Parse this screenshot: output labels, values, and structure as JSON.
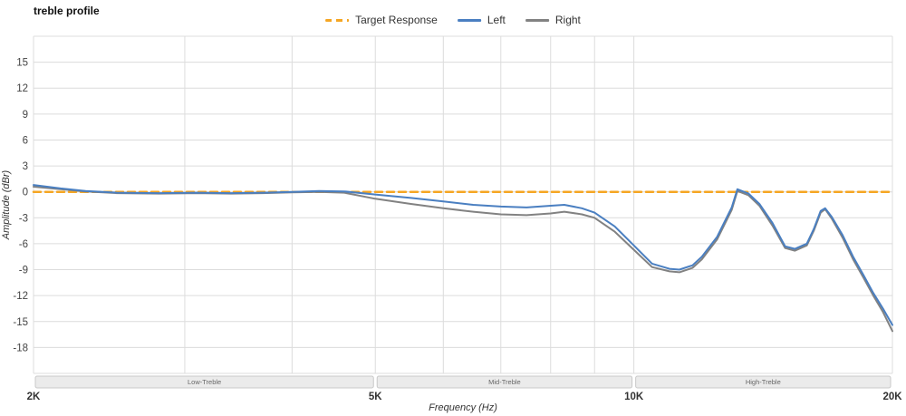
{
  "title": "treble profile",
  "axes": {
    "x_label": "Frequency (Hz)",
    "y_label": "Amplitude (dBr)",
    "x_ticks": [
      {
        "f": 2000,
        "label": "2K"
      },
      {
        "f": 5000,
        "label": "5K"
      },
      {
        "f": 10000,
        "label": "10K"
      },
      {
        "f": 20000,
        "label": "20K"
      }
    ],
    "x_gridlines": [
      2000,
      3000,
      4000,
      5000,
      6000,
      7000,
      8000,
      9000,
      10000,
      20000
    ],
    "y_ticks": [
      15,
      12,
      9,
      6,
      3,
      0,
      -3,
      -6,
      -9,
      -12,
      -15,
      -18
    ]
  },
  "bands": [
    {
      "label": "Low-Treble",
      "from": 2000,
      "to": 5000
    },
    {
      "label": "Mid-Treble",
      "from": 5000,
      "to": 10000
    },
    {
      "label": "High-Treble",
      "from": 10000,
      "to": 20000
    }
  ],
  "colors": {
    "grid": "#dcdcdc",
    "tick_text": "#444444",
    "axis_label_text": "#333333",
    "band_fill": "#ebebeb",
    "band_border": "#c9c9c9",
    "band_text": "#666666"
  },
  "chart_data": {
    "type": "line",
    "x_scale": "log",
    "x_range": [
      2000,
      20000
    ],
    "y_range": [
      -21,
      18
    ],
    "x_unit": "Hz",
    "y_unit": "dBr",
    "grid": true,
    "legend_position": "top-center",
    "series": [
      {
        "name": "Target Response",
        "color": "#f5a623",
        "style": "dashed",
        "points": [
          [
            2000,
            0
          ],
          [
            20000,
            0
          ]
        ]
      },
      {
        "name": "Left",
        "color": "#4a7fc1",
        "style": "solid",
        "points": [
          [
            2000,
            0.8
          ],
          [
            2150,
            0.4
          ],
          [
            2300,
            0.1
          ],
          [
            2500,
            -0.1
          ],
          [
            2800,
            -0.15
          ],
          [
            3100,
            -0.1
          ],
          [
            3400,
            -0.15
          ],
          [
            3700,
            -0.1
          ],
          [
            4000,
            0.0
          ],
          [
            4300,
            0.1
          ],
          [
            4600,
            0.05
          ],
          [
            5000,
            -0.3
          ],
          [
            5500,
            -0.7
          ],
          [
            6000,
            -1.1
          ],
          [
            6500,
            -1.5
          ],
          [
            7000,
            -1.7
          ],
          [
            7500,
            -1.8
          ],
          [
            8000,
            -1.6
          ],
          [
            8300,
            -1.5
          ],
          [
            8700,
            -1.9
          ],
          [
            9000,
            -2.4
          ],
          [
            9500,
            -4.0
          ],
          [
            10000,
            -6.2
          ],
          [
            10500,
            -8.3
          ],
          [
            11000,
            -8.9
          ],
          [
            11300,
            -9.0
          ],
          [
            11700,
            -8.5
          ],
          [
            12000,
            -7.5
          ],
          [
            12500,
            -5.2
          ],
          [
            13000,
            -1.8
          ],
          [
            13200,
            0.3
          ],
          [
            13600,
            -0.2
          ],
          [
            14000,
            -1.4
          ],
          [
            14500,
            -3.6
          ],
          [
            15000,
            -6.3
          ],
          [
            15400,
            -6.6
          ],
          [
            15900,
            -6.0
          ],
          [
            16200,
            -4.3
          ],
          [
            16500,
            -2.2
          ],
          [
            16700,
            -1.9
          ],
          [
            17000,
            -2.9
          ],
          [
            17500,
            -5.0
          ],
          [
            18000,
            -7.5
          ],
          [
            18500,
            -9.6
          ],
          [
            19000,
            -11.7
          ],
          [
            19500,
            -13.5
          ],
          [
            20000,
            -15.4
          ]
        ]
      },
      {
        "name": "Right",
        "color": "#828282",
        "style": "solid",
        "points": [
          [
            2000,
            0.6
          ],
          [
            2150,
            0.3
          ],
          [
            2300,
            0.05
          ],
          [
            2500,
            -0.15
          ],
          [
            2800,
            -0.2
          ],
          [
            3100,
            -0.15
          ],
          [
            3400,
            -0.2
          ],
          [
            3700,
            -0.15
          ],
          [
            4000,
            -0.05
          ],
          [
            4300,
            0.0
          ],
          [
            4600,
            -0.1
          ],
          [
            5000,
            -0.8
          ],
          [
            5500,
            -1.4
          ],
          [
            6000,
            -1.9
          ],
          [
            6500,
            -2.3
          ],
          [
            7000,
            -2.6
          ],
          [
            7500,
            -2.7
          ],
          [
            8000,
            -2.5
          ],
          [
            8300,
            -2.3
          ],
          [
            8700,
            -2.6
          ],
          [
            9000,
            -3.0
          ],
          [
            9500,
            -4.6
          ],
          [
            10000,
            -6.7
          ],
          [
            10500,
            -8.7
          ],
          [
            11000,
            -9.2
          ],
          [
            11300,
            -9.3
          ],
          [
            11700,
            -8.8
          ],
          [
            12000,
            -7.8
          ],
          [
            12500,
            -5.5
          ],
          [
            13000,
            -2.1
          ],
          [
            13200,
            0.1
          ],
          [
            13600,
            -0.4
          ],
          [
            14000,
            -1.6
          ],
          [
            14500,
            -3.9
          ],
          [
            15000,
            -6.5
          ],
          [
            15400,
            -6.8
          ],
          [
            15900,
            -6.2
          ],
          [
            16200,
            -4.5
          ],
          [
            16500,
            -2.4
          ],
          [
            16700,
            -2.0
          ],
          [
            17000,
            -3.1
          ],
          [
            17500,
            -5.3
          ],
          [
            18000,
            -7.8
          ],
          [
            18500,
            -9.9
          ],
          [
            19000,
            -12.0
          ],
          [
            19500,
            -13.9
          ],
          [
            20000,
            -16.1
          ]
        ]
      }
    ]
  }
}
